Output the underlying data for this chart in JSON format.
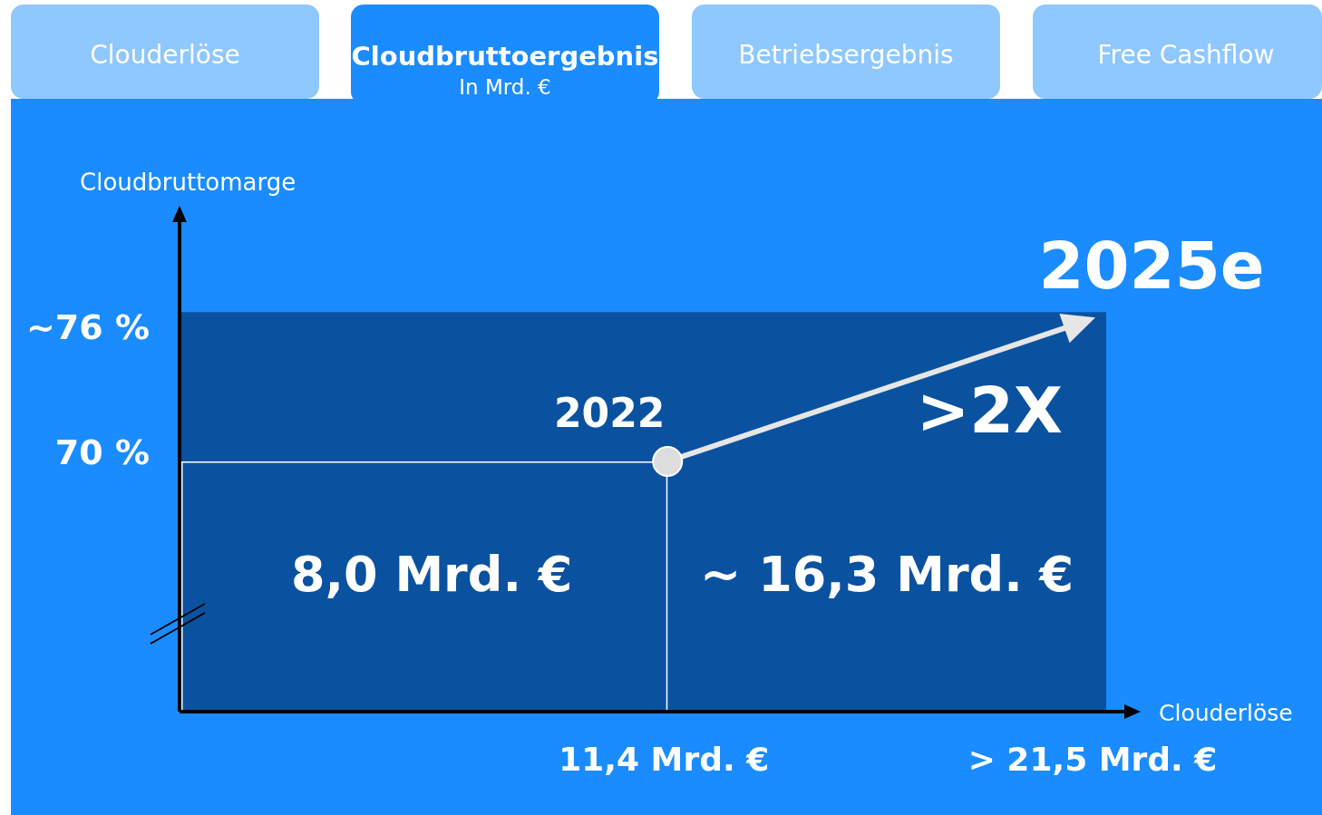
{
  "chart_data": {
    "type": "other",
    "title": "Cloudbruttoergebnis",
    "subtitle": "In Mrd. €",
    "xlabel": "Clouderlöse",
    "ylabel": "Cloudbruttomarge",
    "categories": [
      null,
      null
    ],
    "values": [
      8.0,
      16.3
    ],
    "value_labels": [
      "8,0 Mrd. €",
      "~ 16,3 Mrd. €"
    ],
    "colors": [
      "#0a52a0",
      "#0a52a0"
    ],
    "annotations": [
      "Clouderlöse",
      "Betriebsergebnis",
      "Free Cashflow",
      "~76 %",
      "70 %",
      "11,4 Mrd. €",
      "> 21,5 Mrd. €",
      ">2X",
      "2022",
      "2025e"
    ]
  }
}
